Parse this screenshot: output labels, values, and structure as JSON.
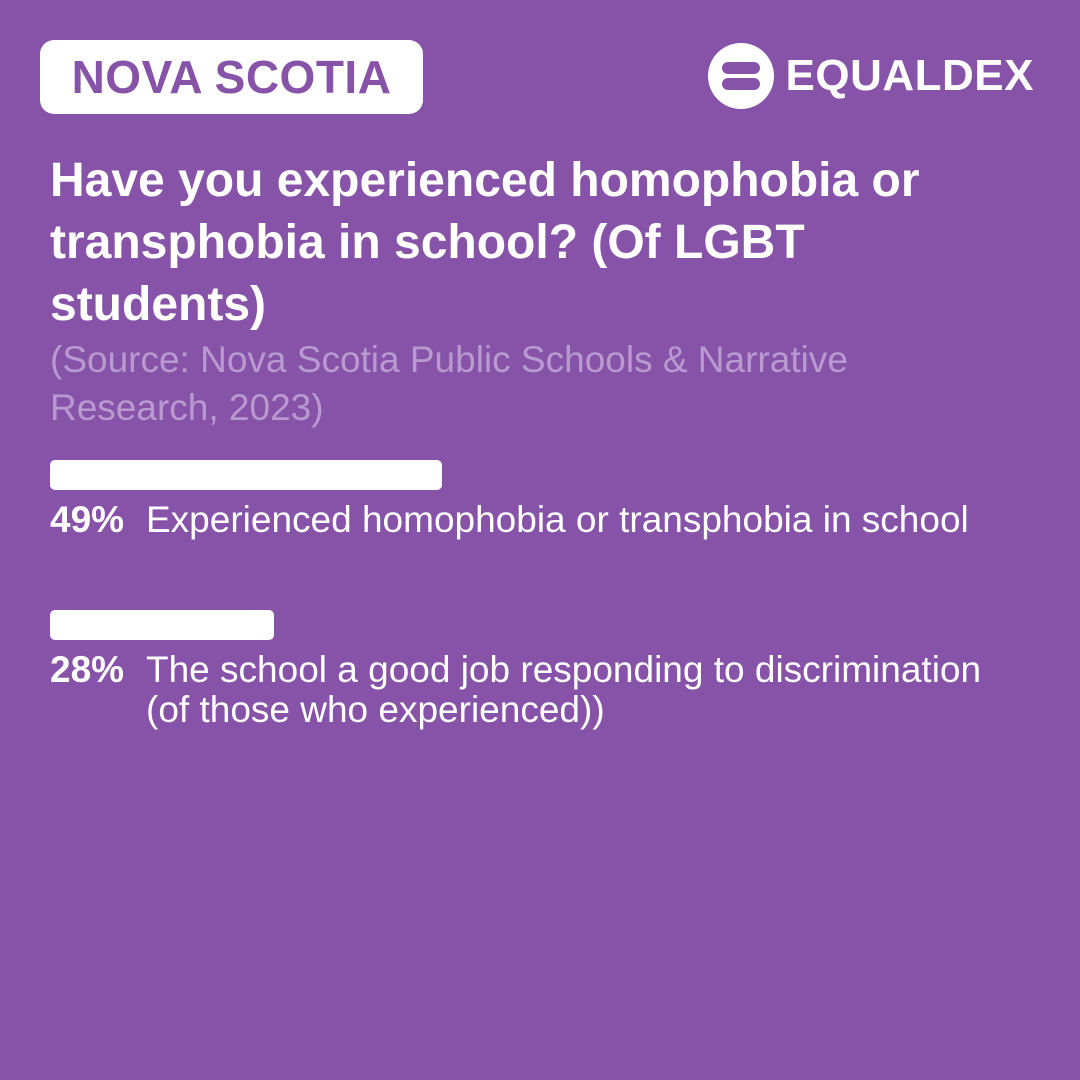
{
  "region_badge": "NOVA SCOTIA",
  "brand": {
    "name": "EQUALDEX",
    "icon": "equaldex-logo-icon"
  },
  "colors": {
    "background": "#8753a8",
    "foreground": "#ffffff",
    "source_text": "#b89ad0"
  },
  "chart_data": {
    "type": "bar",
    "orientation": "horizontal",
    "title": "Have you experienced homophobia or transphobia in school? (Of LGBT students)",
    "source": "(Source: Nova Scotia Public Schools & Narrative Research, 2023)",
    "value_unit": "percent",
    "xlim": [
      0,
      100
    ],
    "grid": false,
    "legend": "none",
    "bars": [
      {
        "value": 49,
        "value_label": "49%",
        "label": "Experienced homophobia or transphobia in school"
      },
      {
        "value": 28,
        "value_label": "28%",
        "label": "The school a good job responding to discrimination (of those who experienced))"
      }
    ]
  }
}
